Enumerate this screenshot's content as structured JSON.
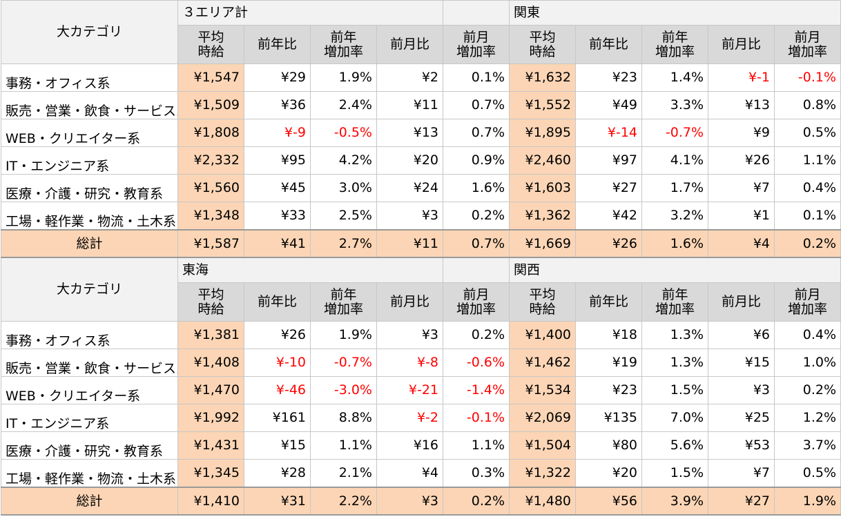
{
  "category_header": "大カテゴリ",
  "column_labels": {
    "avg_line1": "平均",
    "avg_line2": "時給",
    "yoy": "前年比",
    "yoy_rate_line1": "前年",
    "yoy_rate_line2": "増加率",
    "mom": "前月比",
    "mom_rate_line1": "前月",
    "mom_rate_line2": "増加率"
  },
  "total_label": "総計",
  "categories": [
    "事務・オフィス系",
    "販売・営業・飲食・サービス系",
    "WEB・クリエイター系",
    "IT・エンジニア系",
    "医療・介護・研究・教育系",
    "工場・軽作業・物流・土木系"
  ],
  "negative_color": "#ff0000",
  "average_fill_color": "#fbd5b5",
  "header_fill_color": "#d9d9d9",
  "sections": [
    {
      "areas": [
        {
          "name": "３エリア計",
          "rows": [
            [
              "¥1,547",
              "¥29",
              "1.9%",
              "¥2",
              "0.1%"
            ],
            [
              "¥1,509",
              "¥36",
              "2.4%",
              "¥11",
              "0.7%"
            ],
            [
              "¥1,808",
              "¥-9",
              "-0.5%",
              "¥13",
              "0.7%"
            ],
            [
              "¥2,332",
              "¥95",
              "4.2%",
              "¥20",
              "0.9%"
            ],
            [
              "¥1,560",
              "¥45",
              "3.0%",
              "¥24",
              "1.6%"
            ],
            [
              "¥1,348",
              "¥33",
              "2.5%",
              "¥3",
              "0.2%"
            ]
          ],
          "total": [
            "¥1,587",
            "¥41",
            "2.7%",
            "¥11",
            "0.7%"
          ]
        },
        {
          "name": "関東",
          "rows": [
            [
              "¥1,632",
              "¥23",
              "1.4%",
              "¥-1",
              "-0.1%"
            ],
            [
              "¥1,552",
              "¥49",
              "3.3%",
              "¥13",
              "0.8%"
            ],
            [
              "¥1,895",
              "¥-14",
              "-0.7%",
              "¥9",
              "0.5%"
            ],
            [
              "¥2,460",
              "¥97",
              "4.1%",
              "¥26",
              "1.1%"
            ],
            [
              "¥1,603",
              "¥27",
              "1.7%",
              "¥7",
              "0.4%"
            ],
            [
              "¥1,362",
              "¥42",
              "3.2%",
              "¥1",
              "0.1%"
            ]
          ],
          "total": [
            "¥1,669",
            "¥26",
            "1.6%",
            "¥4",
            "0.2%"
          ]
        }
      ]
    },
    {
      "areas": [
        {
          "name": "東海",
          "rows": [
            [
              "¥1,381",
              "¥26",
              "1.9%",
              "¥3",
              "0.2%"
            ],
            [
              "¥1,408",
              "¥-10",
              "-0.7%",
              "¥-8",
              "-0.6%"
            ],
            [
              "¥1,470",
              "¥-46",
              "-3.0%",
              "¥-21",
              "-1.4%"
            ],
            [
              "¥1,992",
              "¥161",
              "8.8%",
              "¥-2",
              "-0.1%"
            ],
            [
              "¥1,431",
              "¥15",
              "1.1%",
              "¥16",
              "1.1%"
            ],
            [
              "¥1,345",
              "¥28",
              "2.1%",
              "¥4",
              "0.3%"
            ]
          ],
          "total": [
            "¥1,410",
            "¥31",
            "2.2%",
            "¥3",
            "0.2%"
          ]
        },
        {
          "name": "関西",
          "rows": [
            [
              "¥1,400",
              "¥18",
              "1.3%",
              "¥6",
              "0.4%"
            ],
            [
              "¥1,462",
              "¥19",
              "1.3%",
              "¥15",
              "1.0%"
            ],
            [
              "¥1,534",
              "¥23",
              "1.5%",
              "¥3",
              "0.2%"
            ],
            [
              "¥2,069",
              "¥135",
              "7.0%",
              "¥25",
              "1.2%"
            ],
            [
              "¥1,504",
              "¥80",
              "5.6%",
              "¥53",
              "3.7%"
            ],
            [
              "¥1,322",
              "¥20",
              "1.5%",
              "¥7",
              "0.5%"
            ]
          ],
          "total": [
            "¥1,480",
            "¥56",
            "3.9%",
            "¥27",
            "1.9%"
          ]
        }
      ]
    }
  ]
}
